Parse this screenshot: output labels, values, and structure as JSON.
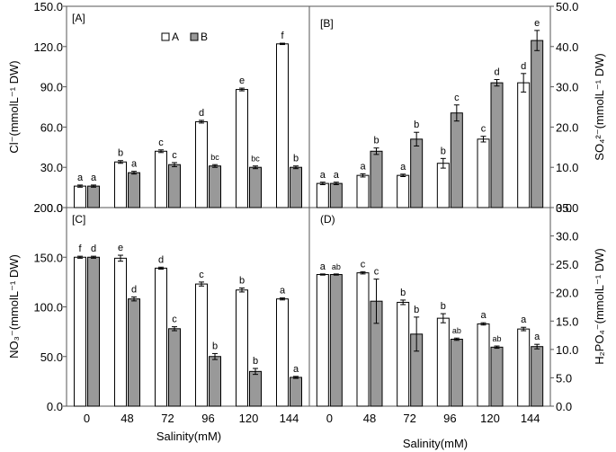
{
  "chart_data": [
    {
      "panel": "[A]",
      "type": "bar",
      "categories": [
        "0",
        "48",
        "72",
        "96",
        "120",
        "144"
      ],
      "ylabel": "Cl⁻(mmolL⁻¹ DW)",
      "ylim": [
        0,
        150
      ],
      "yticks": [
        "0.0",
        "30.0",
        "60.0",
        "90.0",
        "120.0",
        "150.0"
      ],
      "legend": [
        "A",
        "B"
      ],
      "series": [
        {
          "name": "A",
          "values": [
            16,
            34,
            42,
            64,
            88,
            122
          ],
          "errors": [
            0.8,
            1,
            1,
            1,
            1,
            0.5
          ],
          "labels": [
            "a",
            "b",
            "c",
            "d",
            "e",
            "f"
          ]
        },
        {
          "name": "B",
          "values": [
            16,
            26,
            32,
            31,
            30,
            30
          ],
          "errors": [
            0.8,
            1,
            1.5,
            1,
            1,
            1
          ],
          "labels": [
            "a",
            "a",
            "c",
            "bc",
            "bc",
            "b"
          ]
        }
      ]
    },
    {
      "panel": "[B]",
      "type": "bar",
      "categories": [
        "0",
        "48",
        "72",
        "96",
        "120",
        "144"
      ],
      "ylabel": "SO₄²⁻(mmolL⁻¹ DW)",
      "ylim": [
        0,
        50
      ],
      "yticks": [
        "0.0",
        "10.0",
        "20.0",
        "30.0",
        "40.0",
        "50.0"
      ],
      "series": [
        {
          "name": "A",
          "values": [
            6,
            8,
            8,
            11,
            17,
            31
          ],
          "errors": [
            0.3,
            0.4,
            0.3,
            1.2,
            0.7,
            2.3
          ],
          "labels": [
            "a",
            "a",
            "a",
            "b",
            "c",
            "d"
          ]
        },
        {
          "name": "B",
          "values": [
            6,
            14,
            17,
            23.5,
            31,
            41.5
          ],
          "errors": [
            0.3,
            0.8,
            1.7,
            2.0,
            0.8,
            2.5
          ],
          "labels": [
            "a",
            "b",
            "b",
            "c",
            "d",
            "e"
          ]
        }
      ]
    },
    {
      "panel": "[C]",
      "type": "bar",
      "categories": [
        "0",
        "48",
        "72",
        "96",
        "120",
        "144"
      ],
      "xlabel": "Salinity(mM)",
      "ylabel": "NO₃⁻(mmolL⁻¹ DW)",
      "ylim": [
        0,
        200
      ],
      "yticks": [
        "0.0",
        "50.0",
        "100.0",
        "150.0",
        "200.0"
      ],
      "series": [
        {
          "name": "A",
          "values": [
            150,
            149,
            139,
            123,
            117,
            108
          ],
          "errors": [
            1,
            3,
            1,
            2,
            2,
            1
          ],
          "labels": [
            "f",
            "e",
            "d",
            "c",
            "b",
            "a"
          ]
        },
        {
          "name": "B",
          "values": [
            150,
            108,
            78,
            50,
            35,
            29
          ],
          "errors": [
            1,
            2,
            2,
            3,
            3,
            1
          ],
          "labels": [
            "d",
            "d",
            "c",
            "b",
            "b",
            "a"
          ]
        }
      ]
    },
    {
      "panel": "(D)",
      "type": "bar",
      "categories": [
        "0",
        "48",
        "72",
        "96",
        "120",
        "144"
      ],
      "xlabel": "Salinity(mM)",
      "ylabel": "H₂PO₄⁻(mmolL⁻¹ DW)",
      "ylim": [
        0,
        35
      ],
      "yticks": [
        "0.0",
        "5.0",
        "10.0",
        "15.0",
        "20.0",
        "25.0",
        "30.0",
        "35.0"
      ],
      "series": [
        {
          "name": "A",
          "values": [
            23.2,
            23.5,
            18.3,
            15.5,
            14.5,
            13.6
          ],
          "errors": [
            0.1,
            0.2,
            0.4,
            0.8,
            0.2,
            0.3
          ],
          "labels": [
            "a",
            "c",
            "b",
            "b",
            "a",
            "a"
          ]
        },
        {
          "name": "B",
          "values": [
            23.2,
            18.5,
            12.7,
            11.8,
            10.4,
            10.5
          ],
          "errors": [
            0.1,
            3.9,
            3.0,
            0.2,
            0.2,
            0.4
          ],
          "labels": [
            "ab",
            "c",
            "b",
            "ab",
            "ab",
            "a"
          ]
        }
      ]
    }
  ]
}
